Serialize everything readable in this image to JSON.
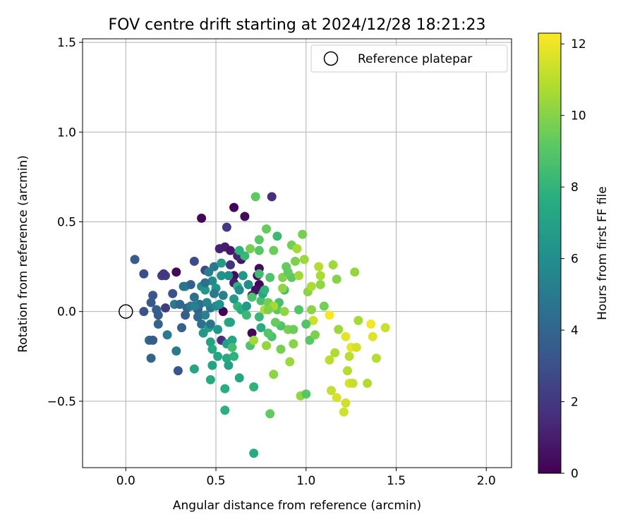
{
  "chart_data": {
    "type": "scatter",
    "title": "FOV centre drift starting at 2024/12/28 18:21:23",
    "xlabel": "Angular distance from reference (arcmin)",
    "ylabel": "Rotation from reference (arcmin)",
    "xlim": [
      -0.24,
      2.14
    ],
    "ylim": [
      -0.87,
      1.52
    ],
    "xticks": [
      0.0,
      0.5,
      1.0,
      1.5,
      2.0
    ],
    "xtick_labels": [
      "0.0",
      "0.5",
      "1.0",
      "1.5",
      "2.0"
    ],
    "yticks": [
      -0.5,
      0.0,
      0.5,
      1.0,
      1.5
    ],
    "ytick_labels": [
      "−0.5",
      "0.0",
      "0.5",
      "1.0",
      "1.5"
    ],
    "grid": true,
    "legend": {
      "position": "top-right",
      "entries": [
        "Reference platepar"
      ]
    },
    "reference_point": {
      "label": "Reference platepar",
      "x": 0.0,
      "y": 0.0
    },
    "colorbar": {
      "label": "Hours from first FF file",
      "range": [
        0,
        12.3
      ],
      "ticks": [
        0,
        2,
        4,
        6,
        8,
        10,
        12
      ],
      "tick_labels": [
        "0",
        "2",
        "4",
        "6",
        "8",
        "10",
        "12"
      ],
      "colormap": "viridis"
    },
    "points": [
      {
        "x": 0.42,
        "y": 0.52,
        "h": 0.2
      },
      {
        "x": 0.6,
        "y": 0.58,
        "h": 0.1
      },
      {
        "x": 0.66,
        "y": 0.53,
        "h": 0.3
      },
      {
        "x": 0.81,
        "y": 0.64,
        "h": 1.6
      },
      {
        "x": 0.56,
        "y": 0.47,
        "h": 2.1
      },
      {
        "x": 0.52,
        "y": 0.35,
        "h": 1.2
      },
      {
        "x": 0.55,
        "y": 0.36,
        "h": 1.0
      },
      {
        "x": 0.58,
        "y": 0.34,
        "h": 0.8
      },
      {
        "x": 0.6,
        "y": 0.2,
        "h": 0.4
      },
      {
        "x": 0.64,
        "y": 0.29,
        "h": 0.7
      },
      {
        "x": 0.74,
        "y": 0.24,
        "h": 0.3
      },
      {
        "x": 0.73,
        "y": 0.2,
        "h": 0.5
      },
      {
        "x": 0.74,
        "y": 0.15,
        "h": 0.2
      },
      {
        "x": 0.72,
        "y": 0.12,
        "h": 0.6
      },
      {
        "x": 0.54,
        "y": 0.0,
        "h": 0.1
      },
      {
        "x": 0.7,
        "y": -0.12,
        "h": 0.1
      },
      {
        "x": 0.28,
        "y": 0.22,
        "h": 0.2
      },
      {
        "x": 0.6,
        "y": 0.16,
        "h": 1.0
      },
      {
        "x": 0.7,
        "y": 0.09,
        "h": 0.9
      },
      {
        "x": 0.62,
        "y": 0.31,
        "h": 1.3
      },
      {
        "x": 0.58,
        "y": 0.26,
        "h": 1.8
      },
      {
        "x": 0.44,
        "y": 0.23,
        "h": 2.6
      },
      {
        "x": 0.38,
        "y": 0.28,
        "h": 2.8
      },
      {
        "x": 0.1,
        "y": 0.21,
        "h": 2.9
      },
      {
        "x": 0.2,
        "y": 0.2,
        "h": 2.4
      },
      {
        "x": 0.22,
        "y": 0.2,
        "h": 2.3
      },
      {
        "x": 0.05,
        "y": 0.29,
        "h": 3.6
      },
      {
        "x": 0.15,
        "y": 0.09,
        "h": 3.3
      },
      {
        "x": 0.14,
        "y": 0.05,
        "h": 3.4
      },
      {
        "x": 0.1,
        "y": 0.0,
        "h": 3.1
      },
      {
        "x": 0.17,
        "y": 0.01,
        "h": 3.8
      },
      {
        "x": 0.18,
        "y": -0.02,
        "h": 3.5
      },
      {
        "x": 0.18,
        "y": -0.07,
        "h": 3.9
      },
      {
        "x": 0.22,
        "y": 0.02,
        "h": 2.1
      },
      {
        "x": 0.13,
        "y": -0.16,
        "h": 4.1
      },
      {
        "x": 0.15,
        "y": -0.16,
        "h": 3.5
      },
      {
        "x": 0.14,
        "y": -0.26,
        "h": 4.0
      },
      {
        "x": 0.23,
        "y": -0.13,
        "h": 5.1
      },
      {
        "x": 0.28,
        "y": -0.22,
        "h": 5.0
      },
      {
        "x": 0.29,
        "y": -0.33,
        "h": 3.2
      },
      {
        "x": 0.31,
        "y": -0.09,
        "h": 3.9
      },
      {
        "x": 0.27,
        "y": 0.04,
        "h": 5.1
      },
      {
        "x": 0.3,
        "y": 0.04,
        "h": 4.2
      },
      {
        "x": 0.33,
        "y": 0.14,
        "h": 5.6
      },
      {
        "x": 0.36,
        "y": 0.15,
        "h": 3.8
      },
      {
        "x": 0.34,
        "y": 0.02,
        "h": 4.0
      },
      {
        "x": 0.36,
        "y": 0.03,
        "h": 4.8
      },
      {
        "x": 0.38,
        "y": 0.08,
        "h": 4.5
      },
      {
        "x": 0.4,
        "y": 0.01,
        "h": 3.7
      },
      {
        "x": 0.41,
        "y": 0.04,
        "h": 4.4
      },
      {
        "x": 0.42,
        "y": 0.14,
        "h": 6.0
      },
      {
        "x": 0.44,
        "y": 0.12,
        "h": 6.5
      },
      {
        "x": 0.44,
        "y": -0.02,
        "h": 5.4
      },
      {
        "x": 0.47,
        "y": 0.02,
        "h": 4.8
      },
      {
        "x": 0.46,
        "y": 0.22,
        "h": 5.2
      },
      {
        "x": 0.48,
        "y": 0.17,
        "h": 5.8
      },
      {
        "x": 0.49,
        "y": 0.25,
        "h": 4.9
      },
      {
        "x": 0.5,
        "y": 0.13,
        "h": 6.3
      },
      {
        "x": 0.5,
        "y": 0.03,
        "h": 5.7
      },
      {
        "x": 0.42,
        "y": -0.07,
        "h": 4.6
      },
      {
        "x": 0.46,
        "y": -0.09,
        "h": 6.9
      },
      {
        "x": 0.47,
        "y": -0.07,
        "h": 4.7
      },
      {
        "x": 0.47,
        "y": -0.17,
        "h": 7.0
      },
      {
        "x": 0.48,
        "y": -0.3,
        "h": 7.1
      },
      {
        "x": 0.47,
        "y": -0.38,
        "h": 7.4
      },
      {
        "x": 0.38,
        "y": -0.32,
        "h": 7.2
      },
      {
        "x": 0.52,
        "y": 0.04,
        "h": 6.2
      },
      {
        "x": 0.53,
        "y": 0.27,
        "h": 6.8
      },
      {
        "x": 0.54,
        "y": 0.09,
        "h": 5.3
      },
      {
        "x": 0.53,
        "y": -0.16,
        "h": 1.6
      },
      {
        "x": 0.51,
        "y": -0.25,
        "h": 7.3
      },
      {
        "x": 0.55,
        "y": -0.43,
        "h": 7.6
      },
      {
        "x": 0.55,
        "y": -0.55,
        "h": 7.8
      },
      {
        "x": 0.56,
        "y": -0.18,
        "h": 6.9
      },
      {
        "x": 0.56,
        "y": -0.26,
        "h": 7.5
      },
      {
        "x": 0.57,
        "y": -0.06,
        "h": 7.7
      },
      {
        "x": 0.57,
        "y": -0.3,
        "h": 7.0
      },
      {
        "x": 0.59,
        "y": -0.16,
        "h": 7.2
      },
      {
        "x": 0.59,
        "y": -0.2,
        "h": 8.5
      },
      {
        "x": 0.6,
        "y": -0.25,
        "h": 7.9
      },
      {
        "x": 0.62,
        "y": 0.03,
        "h": 8.1
      },
      {
        "x": 0.63,
        "y": -0.37,
        "h": 7.3
      },
      {
        "x": 0.64,
        "y": 0.01,
        "h": 7.6
      },
      {
        "x": 0.65,
        "y": 0.2,
        "h": 6.4
      },
      {
        "x": 0.66,
        "y": 0.31,
        "h": 8.2
      },
      {
        "x": 0.67,
        "y": 0.03,
        "h": 6.6
      },
      {
        "x": 0.68,
        "y": 0.15,
        "h": 6.0
      },
      {
        "x": 0.69,
        "y": -0.19,
        "h": 8.9
      },
      {
        "x": 0.71,
        "y": -0.42,
        "h": 7.9
      },
      {
        "x": 0.71,
        "y": -0.79,
        "h": 7.4
      },
      {
        "x": 0.71,
        "y": -0.16,
        "h": 10.5
      },
      {
        "x": 0.72,
        "y": 0.64,
        "h": 9.2
      },
      {
        "x": 0.74,
        "y": 0.21,
        "h": 8.4
      },
      {
        "x": 0.74,
        "y": 0.34,
        "h": 9.0
      },
      {
        "x": 0.75,
        "y": 0.06,
        "h": 8.6
      },
      {
        "x": 0.75,
        "y": -0.09,
        "h": 7.6
      },
      {
        "x": 0.76,
        "y": 0.1,
        "h": 7.3
      },
      {
        "x": 0.77,
        "y": 0.01,
        "h": 10.8
      },
      {
        "x": 0.78,
        "y": 0.46,
        "h": 9.4
      },
      {
        "x": 0.78,
        "y": -0.19,
        "h": 10.3
      },
      {
        "x": 0.79,
        "y": 0.05,
        "h": 9.6
      },
      {
        "x": 0.8,
        "y": 0.19,
        "h": 8.8
      },
      {
        "x": 0.8,
        "y": -0.57,
        "h": 9.3
      },
      {
        "x": 0.81,
        "y": -0.14,
        "h": 8.7
      },
      {
        "x": 0.82,
        "y": 0.34,
        "h": 9.5
      },
      {
        "x": 0.82,
        "y": -0.35,
        "h": 10.1
      },
      {
        "x": 0.84,
        "y": 0.42,
        "h": 8.3
      },
      {
        "x": 0.84,
        "y": 0.01,
        "h": 9.1
      },
      {
        "x": 0.85,
        "y": 0.05,
        "h": 8.6
      },
      {
        "x": 0.86,
        "y": -0.21,
        "h": 9.7
      },
      {
        "x": 0.87,
        "y": 0.19,
        "h": 9.9
      },
      {
        "x": 0.88,
        "y": 0.12,
        "h": 8.5
      },
      {
        "x": 0.88,
        "y": 0.0,
        "h": 10.2
      },
      {
        "x": 0.89,
        "y": 0.25,
        "h": 9.4
      },
      {
        "x": 0.9,
        "y": -0.1,
        "h": 9.8
      },
      {
        "x": 0.91,
        "y": -0.28,
        "h": 10.4
      },
      {
        "x": 0.92,
        "y": 0.37,
        "h": 9.6
      },
      {
        "x": 0.92,
        "y": 0.19,
        "h": 9.2
      },
      {
        "x": 0.93,
        "y": -0.18,
        "h": 10.0
      },
      {
        "x": 0.94,
        "y": 0.28,
        "h": 9.8
      },
      {
        "x": 0.95,
        "y": 0.35,
        "h": 10.6
      },
      {
        "x": 0.96,
        "y": 0.01,
        "h": 8.9
      },
      {
        "x": 0.97,
        "y": -0.47,
        "h": 10.3
      },
      {
        "x": 0.98,
        "y": 0.43,
        "h": 9.7
      },
      {
        "x": 0.99,
        "y": 0.29,
        "h": 10.4
      },
      {
        "x": 1.0,
        "y": -0.46,
        "h": 9.0
      },
      {
        "x": 1.01,
        "y": 0.11,
        "h": 10.1
      },
      {
        "x": 1.02,
        "y": -0.16,
        "h": 9.1
      },
      {
        "x": 1.03,
        "y": 0.14,
        "h": 10.7
      },
      {
        "x": 1.04,
        "y": -0.05,
        "h": 11.3
      },
      {
        "x": 1.07,
        "y": 0.25,
        "h": 10.9
      },
      {
        "x": 1.08,
        "y": 0.15,
        "h": 10.2
      },
      {
        "x": 1.1,
        "y": 0.03,
        "h": 9.6
      },
      {
        "x": 1.13,
        "y": -0.27,
        "h": 11.0
      },
      {
        "x": 1.14,
        "y": -0.44,
        "h": 11.2
      },
      {
        "x": 1.15,
        "y": 0.26,
        "h": 10.5
      },
      {
        "x": 1.16,
        "y": -0.23,
        "h": 10.8
      },
      {
        "x": 1.17,
        "y": -0.48,
        "h": 11.6
      },
      {
        "x": 1.17,
        "y": 0.18,
        "h": 10.0
      },
      {
        "x": 1.21,
        "y": -0.56,
        "h": 11.4
      },
      {
        "x": 1.22,
        "y": -0.14,
        "h": 11.8
      },
      {
        "x": 1.23,
        "y": -0.33,
        "h": 10.9
      },
      {
        "x": 1.24,
        "y": -0.4,
        "h": 11.6
      },
      {
        "x": 1.25,
        "y": -0.2,
        "h": 11.9
      },
      {
        "x": 1.26,
        "y": -0.4,
        "h": 11.2
      },
      {
        "x": 1.27,
        "y": 0.22,
        "h": 10.3
      },
      {
        "x": 1.28,
        "y": -0.2,
        "h": 11.5
      },
      {
        "x": 1.29,
        "y": -0.05,
        "h": 10.6
      },
      {
        "x": 1.34,
        "y": -0.4,
        "h": 10.8
      },
      {
        "x": 1.36,
        "y": -0.07,
        "h": 12.1
      },
      {
        "x": 1.37,
        "y": -0.14,
        "h": 11.7
      },
      {
        "x": 1.39,
        "y": -0.26,
        "h": 10.9
      },
      {
        "x": 1.44,
        "y": -0.09,
        "h": 11.3
      },
      {
        "x": 1.13,
        "y": -0.02,
        "h": 12.2
      },
      {
        "x": 1.22,
        "y": -0.51,
        "h": 11.4
      },
      {
        "x": 1.05,
        "y": -0.13,
        "h": 9.8
      },
      {
        "x": 1.03,
        "y": 0.01,
        "h": 10.1
      },
      {
        "x": 0.96,
        "y": 0.2,
        "h": 10.5
      },
      {
        "x": 0.9,
        "y": 0.22,
        "h": 9.3
      },
      {
        "x": 0.87,
        "y": 0.13,
        "h": 10.2
      },
      {
        "x": 0.82,
        "y": 0.03,
        "h": 10.6
      },
      {
        "x": 0.79,
        "y": 0.01,
        "h": 9.9
      },
      {
        "x": 0.77,
        "y": 0.12,
        "h": 8.0
      },
      {
        "x": 0.74,
        "y": -0.03,
        "h": 8.2
      },
      {
        "x": 0.7,
        "y": 0.08,
        "h": 8.7
      },
      {
        "x": 0.67,
        "y": -0.02,
        "h": 8.3
      },
      {
        "x": 0.62,
        "y": 0.14,
        "h": 7.8
      },
      {
        "x": 0.6,
        "y": 0.07,
        "h": 6.7
      },
      {
        "x": 0.58,
        "y": -0.06,
        "h": 7.1
      },
      {
        "x": 0.51,
        "y": -0.1,
        "h": 6.4
      },
      {
        "x": 0.45,
        "y": 0.05,
        "h": 5.5
      },
      {
        "x": 0.4,
        "y": -0.03,
        "h": 4.3
      },
      {
        "x": 0.33,
        "y": -0.02,
        "h": 3.6
      },
      {
        "x": 0.26,
        "y": 0.1,
        "h": 3.0
      },
      {
        "x": 0.21,
        "y": 0.21,
        "h": 1.9
      },
      {
        "x": 0.63,
        "y": 0.12,
        "h": 5.9
      },
      {
        "x": 0.57,
        "y": 0.2,
        "h": 6.1
      },
      {
        "x": 0.49,
        "y": 0.1,
        "h": 5.0
      },
      {
        "x": 0.44,
        "y": 0.16,
        "h": 4.5
      },
      {
        "x": 0.86,
        "y": -0.08,
        "h": 8.8
      },
      {
        "x": 0.93,
        "y": -0.1,
        "h": 9.5
      },
      {
        "x": 1.0,
        "y": -0.07,
        "h": 8.9
      },
      {
        "x": 1.08,
        "y": 0.2,
        "h": 10.7
      },
      {
        "x": 0.69,
        "y": 0.35,
        "h": 9.7
      },
      {
        "x": 0.74,
        "y": 0.4,
        "h": 9.1
      },
      {
        "x": 0.63,
        "y": 0.34,
        "h": 7.9
      },
      {
        "x": 0.53,
        "y": 0.2,
        "h": 6.2
      },
      {
        "x": 0.48,
        "y": -0.21,
        "h": 7.5
      },
      {
        "x": 0.43,
        "y": -0.12,
        "h": 6.6
      },
      {
        "x": 0.38,
        "y": 0.03,
        "h": 5.3
      },
      {
        "x": 0.32,
        "y": 0.14,
        "h": 4.7
      },
      {
        "x": 1.24,
        "y": -0.25,
        "h": 11.0
      },
      {
        "x": 1.18,
        "y": -0.1,
        "h": 10.4
      },
      {
        "x": 0.79,
        "y": -0.12,
        "h": 9.0
      },
      {
        "x": 0.83,
        "y": -0.06,
        "h": 9.4
      }
    ]
  }
}
